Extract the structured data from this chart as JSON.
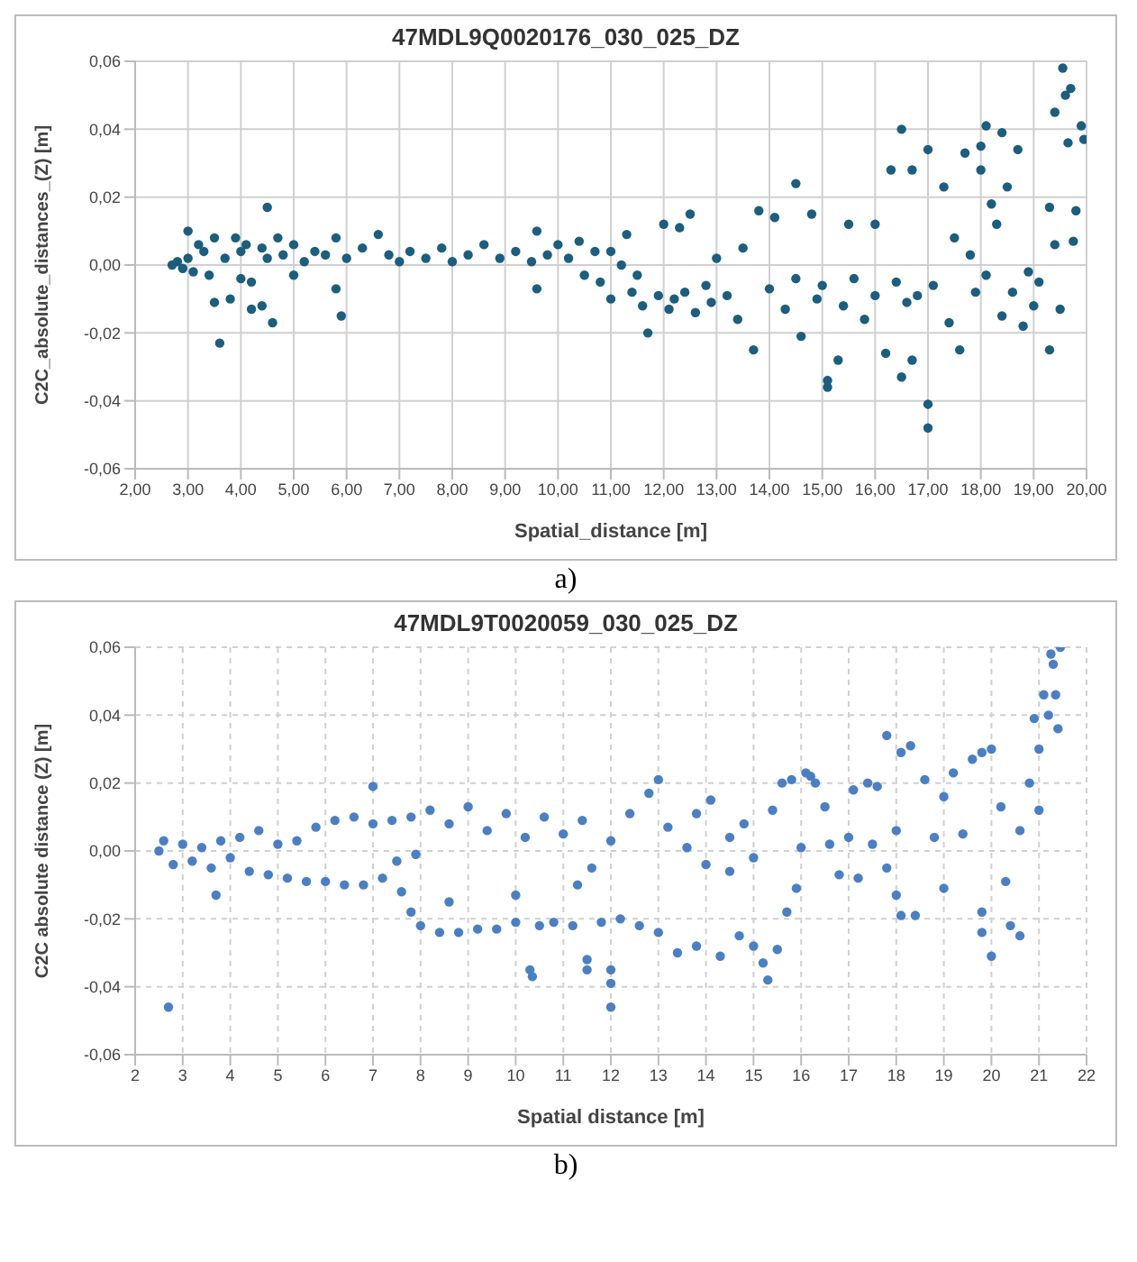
{
  "chart_data": [
    {
      "type": "scatter",
      "title": "47MDL9Q0020176_030_025_DZ",
      "xlabel": "Spatial_distance [m]",
      "ylabel": "C2C_absolute_distances_(Z) [m]",
      "annotations": [
        "a)"
      ],
      "grid": true,
      "marker": "circle",
      "xlim": [
        2,
        20
      ],
      "ylim": [
        -0.06,
        0.06
      ],
      "xticks": [
        {
          "value": 2,
          "label": "2,00"
        },
        {
          "value": 3,
          "label": "3,00"
        },
        {
          "value": 4,
          "label": "4,00"
        },
        {
          "value": 5,
          "label": "5,00"
        },
        {
          "value": 6,
          "label": "6,00"
        },
        {
          "value": 7,
          "label": "7,00"
        },
        {
          "value": 8,
          "label": "8,00"
        },
        {
          "value": 9,
          "label": "9,00"
        },
        {
          "value": 10,
          "label": "10,00"
        },
        {
          "value": 11,
          "label": "11,00"
        },
        {
          "value": 12,
          "label": "12,00"
        },
        {
          "value": 13,
          "label": "13,00"
        },
        {
          "value": 14,
          "label": "14,00"
        },
        {
          "value": 15,
          "label": "15,00"
        },
        {
          "value": 16,
          "label": "16,00"
        },
        {
          "value": 17,
          "label": "17,00"
        },
        {
          "value": 18,
          "label": "18,00"
        },
        {
          "value": 19,
          "label": "19,00"
        },
        {
          "value": 20,
          "label": "20,00"
        }
      ],
      "yticks": [
        {
          "value": -0.06,
          "label": "-0,06"
        },
        {
          "value": -0.04,
          "label": "-0,04"
        },
        {
          "value": -0.02,
          "label": "-0,02"
        },
        {
          "value": 0,
          "label": "0,00"
        },
        {
          "value": 0.02,
          "label": "0,02"
        },
        {
          "value": 0.04,
          "label": "0,04"
        },
        {
          "value": 0.06,
          "label": "0,06"
        }
      ],
      "series": [
        {
          "color": "#1b5e7e",
          "x": [
            2.7,
            2.8,
            2.9,
            3.0,
            3.0,
            3.1,
            3.2,
            3.3,
            3.4,
            3.5,
            3.5,
            3.6,
            3.7,
            3.8,
            3.9,
            4.0,
            4.0,
            4.1,
            4.2,
            4.2,
            4.4,
            4.4,
            4.5,
            4.5,
            4.6,
            4.7,
            4.8,
            5.0,
            5.0,
            5.2,
            5.4,
            5.6,
            5.8,
            5.8,
            5.9,
            6.0,
            6.3,
            6.6,
            6.8,
            7.0,
            7.2,
            7.5,
            7.8,
            8.0,
            8.3,
            8.6,
            8.9,
            9.2,
            9.5,
            9.6,
            9.6,
            9.8,
            10.0,
            10.2,
            10.4,
            10.5,
            10.7,
            10.8,
            11.0,
            11.0,
            11.2,
            11.3,
            11.4,
            11.5,
            11.6,
            11.7,
            11.9,
            12.0,
            12.1,
            12.2,
            12.3,
            12.4,
            12.5,
            12.6,
            12.8,
            12.9,
            13.0,
            13.2,
            13.4,
            13.5,
            13.7,
            13.8,
            14.0,
            14.1,
            14.3,
            14.5,
            14.5,
            14.6,
            14.8,
            14.9,
            15.0,
            15.1,
            15.1,
            15.3,
            15.4,
            15.5,
            15.6,
            15.8,
            16.0,
            16.0,
            16.2,
            16.3,
            16.4,
            16.5,
            16.5,
            16.6,
            16.7,
            16.7,
            16.8,
            17.0,
            17.0,
            17.0,
            17.1,
            17.3,
            17.4,
            17.5,
            17.6,
            17.7,
            17.8,
            17.9,
            18.0,
            18.0,
            18.1,
            18.1,
            18.2,
            18.3,
            18.4,
            18.4,
            18.5,
            18.6,
            18.7,
            18.8,
            18.9,
            19.0,
            19.1,
            19.3,
            19.3,
            19.4,
            19.4,
            19.5,
            19.55,
            19.6,
            19.65,
            19.7,
            19.75,
            19.8,
            19.9,
            19.95
          ],
          "values": [
            0,
            0.001,
            -0.001,
            0.01,
            0.002,
            -0.002,
            0.006,
            0.004,
            -0.003,
            0.008,
            -0.011,
            -0.023,
            0.002,
            -0.01,
            0.008,
            0.004,
            -0.004,
            0.006,
            -0.005,
            -0.013,
            0.005,
            -0.012,
            0.017,
            0.002,
            -0.017,
            0.008,
            0.003,
            -0.003,
            0.006,
            0.001,
            0.004,
            0.003,
            0.008,
            -0.007,
            -0.015,
            0.002,
            0.005,
            0.009,
            0.003,
            0.001,
            0.004,
            0.002,
            0.005,
            0.001,
            0.003,
            0.006,
            0.002,
            0.004,
            0.001,
            -0.007,
            0.01,
            0.003,
            0.006,
            0.002,
            0.007,
            -0.003,
            0.004,
            -0.005,
            0.004,
            -0.01,
            0,
            0.009,
            -0.008,
            -0.003,
            -0.012,
            -0.02,
            -0.009,
            0.012,
            -0.013,
            -0.01,
            0.011,
            -0.008,
            0.015,
            -0.014,
            -0.006,
            -0.011,
            0.002,
            -0.009,
            -0.016,
            0.005,
            -0.025,
            0.016,
            -0.007,
            0.014,
            -0.013,
            0.024,
            -0.004,
            -0.021,
            0.015,
            -0.01,
            -0.006,
            -0.034,
            -0.036,
            -0.028,
            -0.012,
            0.012,
            -0.004,
            -0.016,
            0.012,
            -0.009,
            -0.026,
            0.028,
            -0.005,
            0.04,
            -0.033,
            -0.011,
            0.028,
            -0.028,
            -0.009,
            0.034,
            -0.041,
            -0.048,
            -0.006,
            0.023,
            -0.017,
            0.008,
            -0.025,
            0.033,
            0.003,
            -0.008,
            0.035,
            0.028,
            0.041,
            -0.003,
            0.018,
            0.012,
            0.039,
            -0.015,
            0.023,
            -0.008,
            0.034,
            -0.018,
            -0.002,
            -0.012,
            -0.005,
            -0.025,
            0.017,
            0.045,
            0.006,
            -0.013,
            0.058,
            0.05,
            0.036,
            0.052,
            0.007,
            0.016,
            0.041,
            0.037
          ]
        }
      ]
    },
    {
      "type": "scatter",
      "title": "47MDL9T0020059_030_025_DZ",
      "xlabel": "Spatial distance [m]",
      "ylabel": "C2C absolute distance (Z) [m]",
      "annotations": [
        "b)"
      ],
      "grid": true,
      "marker": "circle",
      "xlim": [
        2,
        22
      ],
      "ylim": [
        -0.06,
        0.06
      ],
      "xticks": [
        2,
        3,
        4,
        5,
        6,
        7,
        8,
        9,
        10,
        11,
        12,
        13,
        14,
        15,
        16,
        17,
        18,
        19,
        20,
        21,
        22
      ],
      "yticks": [
        {
          "value": -0.06,
          "label": "-0,06"
        },
        {
          "value": -0.04,
          "label": "-0,04"
        },
        {
          "value": -0.02,
          "label": "-0,02"
        },
        {
          "value": 0,
          "label": "0,00"
        },
        {
          "value": 0.02,
          "label": "0,02"
        },
        {
          "value": 0.04,
          "label": "0,04"
        },
        {
          "value": 0.06,
          "label": "0,06"
        }
      ],
      "series": [
        {
          "color": "#4a7fc4",
          "x": [
            2.5,
            2.6,
            2.7,
            2.8,
            3.0,
            3.2,
            3.4,
            3.6,
            3.7,
            3.8,
            4.0,
            4.2,
            4.4,
            4.6,
            4.8,
            5.0,
            5.2,
            5.4,
            5.6,
            5.8,
            6.0,
            6.2,
            6.4,
            6.6,
            6.8,
            7.0,
            7.0,
            7.2,
            7.4,
            7.5,
            7.6,
            7.8,
            7.8,
            7.9,
            8.0,
            8.2,
            8.4,
            8.6,
            8.6,
            8.8,
            9.0,
            9.2,
            9.4,
            9.6,
            9.8,
            10.0,
            10.0,
            10.2,
            10.3,
            10.35,
            10.5,
            10.6,
            10.8,
            11.0,
            11.2,
            11.3,
            11.4,
            11.5,
            11.5,
            11.6,
            11.8,
            12.0,
            12.0,
            12.0,
            12.0,
            12.2,
            12.4,
            12.6,
            12.8,
            13.0,
            13.0,
            13.2,
            13.4,
            13.6,
            13.8,
            13.8,
            14.0,
            14.1,
            14.3,
            14.5,
            14.5,
            14.7,
            14.8,
            15.0,
            15.0,
            15.2,
            15.3,
            15.4,
            15.5,
            15.6,
            15.7,
            15.8,
            15.9,
            16.0,
            16.1,
            16.2,
            16.3,
            16.5,
            16.6,
            16.8,
            17.0,
            17.1,
            17.2,
            17.4,
            17.5,
            17.6,
            17.8,
            17.8,
            18.0,
            18.1,
            18.0,
            18.1,
            18.3,
            18.4,
            18.6,
            18.8,
            19.0,
            19.0,
            19.2,
            19.4,
            19.6,
            19.8,
            19.8,
            19.8,
            20.0,
            20.0,
            20.2,
            20.3,
            20.4,
            20.6,
            20.6,
            20.8,
            20.9,
            21.0,
            21.0,
            21.1,
            21.2,
            21.25,
            21.3,
            21.35,
            21.4,
            21.45
          ],
          "values": [
            0,
            0.003,
            -0.046,
            -0.004,
            0.002,
            -0.003,
            0.001,
            -0.005,
            -0.013,
            0.003,
            -0.002,
            0.004,
            -0.006,
            0.006,
            -0.007,
            0.002,
            -0.008,
            0.003,
            -0.009,
            0.007,
            -0.009,
            0.009,
            -0.01,
            0.01,
            -0.01,
            0.019,
            0.008,
            -0.008,
            0.009,
            -0.003,
            -0.012,
            0.01,
            -0.018,
            -0.001,
            -0.022,
            0.012,
            -0.024,
            0.008,
            -0.015,
            -0.024,
            0.013,
            -0.023,
            0.006,
            -0.023,
            0.011,
            -0.013,
            -0.021,
            0.004,
            -0.035,
            -0.037,
            -0.022,
            0.01,
            -0.021,
            0.005,
            -0.022,
            -0.01,
            0.009,
            -0.032,
            -0.035,
            -0.005,
            -0.021,
            0.003,
            -0.035,
            -0.039,
            -0.046,
            -0.02,
            0.011,
            -0.022,
            0.017,
            0.021,
            -0.024,
            0.007,
            -0.03,
            0.001,
            0.011,
            -0.028,
            -0.004,
            0.015,
            -0.031,
            0.004,
            -0.006,
            -0.025,
            0.008,
            -0.002,
            -0.028,
            -0.033,
            -0.038,
            0.012,
            -0.029,
            0.02,
            -0.018,
            0.021,
            -0.011,
            0.001,
            0.023,
            0.022,
            0.02,
            0.013,
            0.002,
            -0.007,
            0.004,
            0.018,
            -0.008,
            0.02,
            0.002,
            0.019,
            0.034,
            -0.005,
            0.006,
            0.029,
            -0.013,
            -0.019,
            0.031,
            -0.019,
            0.021,
            0.004,
            0.016,
            -0.011,
            0.023,
            0.005,
            0.027,
            0.029,
            -0.018,
            -0.024,
            0.03,
            -0.031,
            0.013,
            -0.009,
            -0.022,
            -0.025,
            0.006,
            0.02,
            0.039,
            0.012,
            0.03,
            0.046,
            0.04,
            0.058,
            0.055,
            0.046,
            0.036,
            0.06
          ]
        }
      ]
    }
  ]
}
